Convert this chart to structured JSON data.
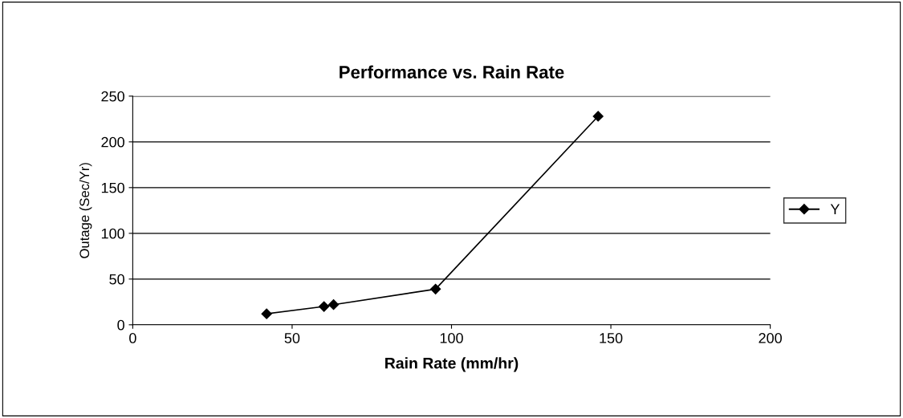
{
  "chart_data": {
    "type": "line",
    "title": "Performance vs. Rain Rate",
    "xlabel": "Rain Rate (mm/hr)",
    "ylabel": "Outage (Sec/Yr)",
    "series": [
      {
        "name": "Y",
        "color": "#000000",
        "x": [
          42,
          60,
          63,
          95,
          146
        ],
        "values": [
          12,
          20,
          22,
          39,
          228
        ]
      }
    ],
    "xlim": [
      0,
      200
    ],
    "xticks": [
      0,
      50,
      100,
      150,
      200
    ],
    "ylim": [
      0,
      250
    ],
    "yticks": [
      0,
      50,
      100,
      150,
      200,
      250
    ],
    "grid": "y",
    "legend": "right",
    "marker": "diamond",
    "line_style": "solid"
  }
}
